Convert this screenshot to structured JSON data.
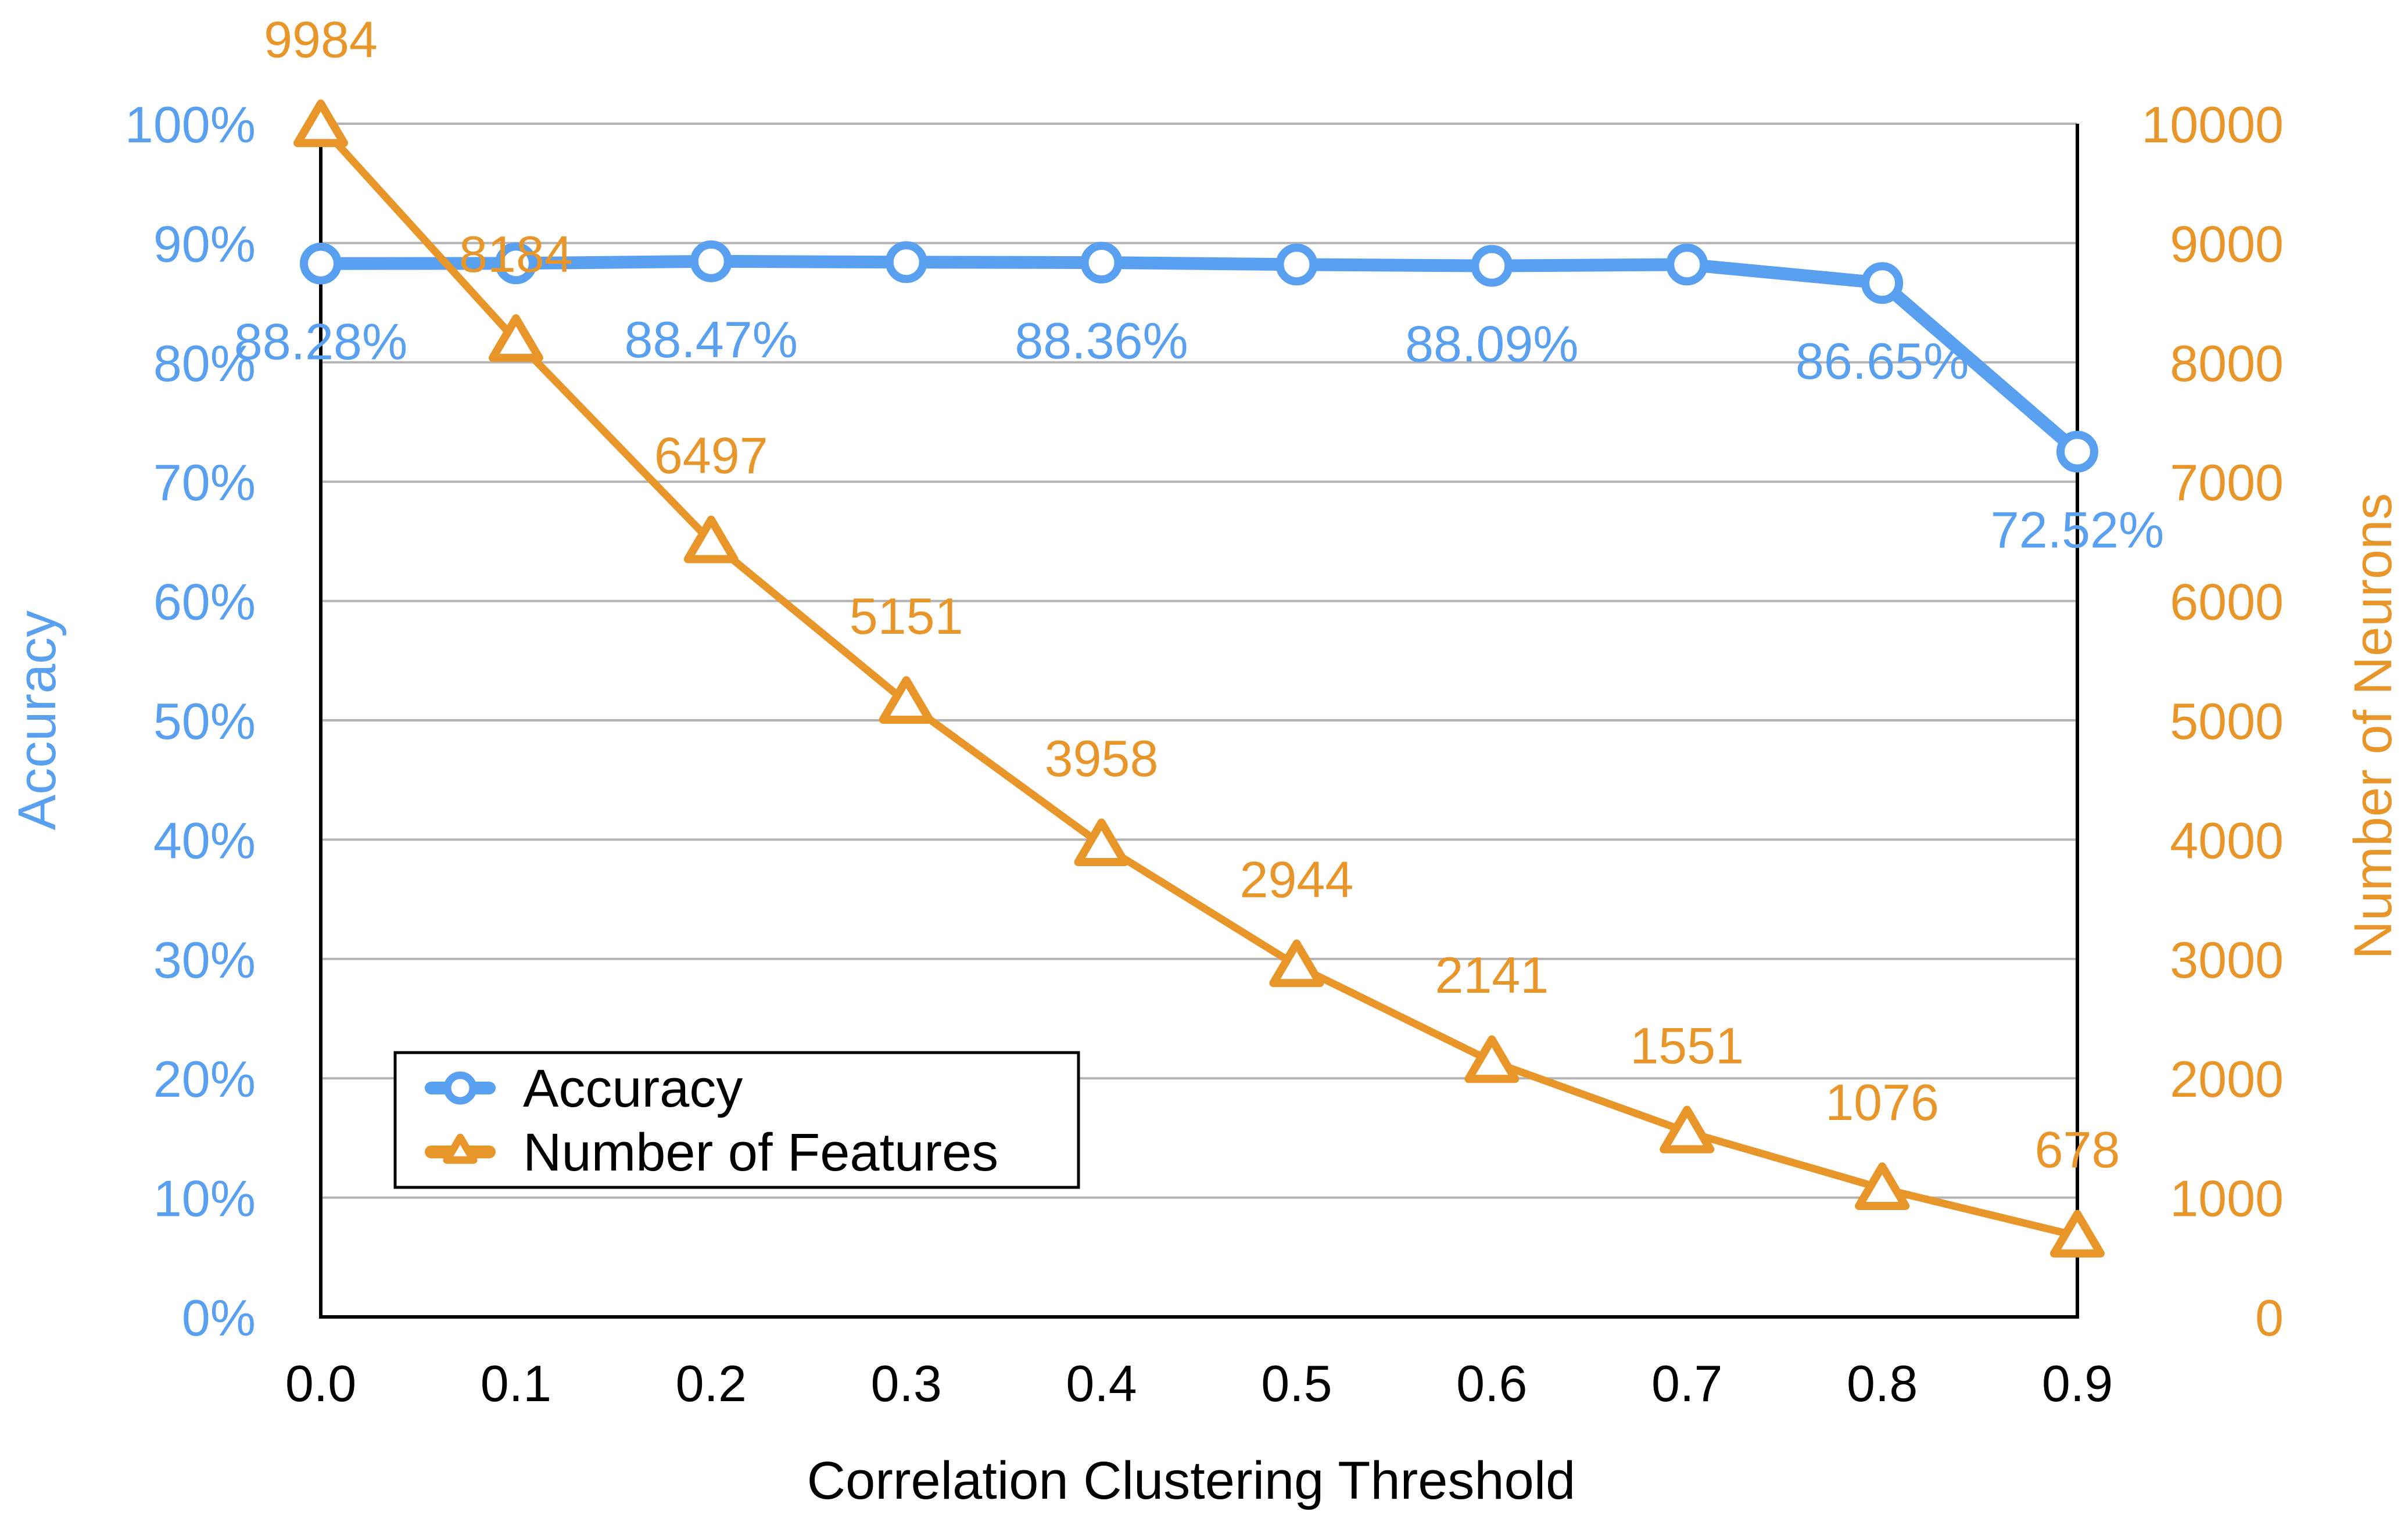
{
  "chart_data": {
    "type": "line",
    "title": "",
    "xlabel": "Correlation Clustering Threshold",
    "ylabel_left": "Accuracy",
    "ylabel_right": "Number of Neurons",
    "categories": [
      "0.0",
      "0.1",
      "0.2",
      "0.3",
      "0.4",
      "0.5",
      "0.6",
      "0.7",
      "0.8",
      "0.9"
    ],
    "x": [
      0.0,
      0.1,
      0.2,
      0.3,
      0.4,
      0.5,
      0.6,
      0.7,
      0.8,
      0.9
    ],
    "ylim_left": [
      0,
      100
    ],
    "yticks_left": [
      "0%",
      "10%",
      "20%",
      "30%",
      "40%",
      "50%",
      "60%",
      "70%",
      "80%",
      "90%",
      "100%"
    ],
    "ylim_right": [
      0,
      10000
    ],
    "yticks_right": [
      "0",
      "1000",
      "2000",
      "3000",
      "4000",
      "5000",
      "6000",
      "7000",
      "8000",
      "9000",
      "10000"
    ],
    "grid": true,
    "legend_position": "bottom-left",
    "series": [
      {
        "name": "Accuracy",
        "axis": "left",
        "color": "#5AA0F0",
        "marker": "circle",
        "values": [
          88.28,
          88.3,
          88.47,
          88.4,
          88.36,
          88.2,
          88.09,
          88.2,
          86.65,
          72.52
        ],
        "labels": [
          "88.28%",
          "",
          "88.47%",
          "",
          "88.36%",
          "",
          "88.09%",
          "",
          "86.65%",
          "72.52%"
        ]
      },
      {
        "name": "Number of Features",
        "axis": "right",
        "color": "#E8962A",
        "marker": "triangle",
        "values": [
          9984,
          8184,
          6497,
          5151,
          3958,
          2944,
          2141,
          1551,
          1076,
          678
        ],
        "labels": [
          "9984",
          "8184",
          "6497",
          "5151",
          "3958",
          "2944",
          "2141",
          "1551",
          "1076",
          "678"
        ]
      }
    ]
  }
}
